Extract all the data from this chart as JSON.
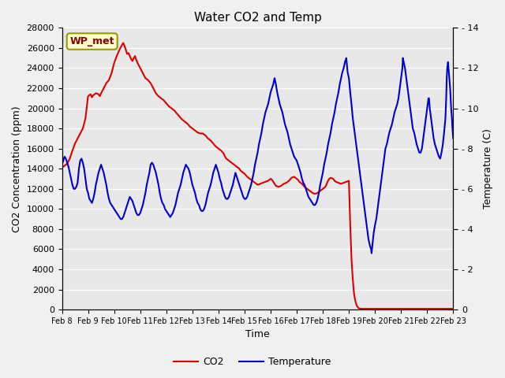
{
  "title": "Water CO2 and Temp",
  "xlabel": "Time",
  "ylabel_left": "CO2 Concentration (ppm)",
  "ylabel_right": "Temperature (C)",
  "co2_color": "#dd0000",
  "temp_color": "#0000cc",
  "bg_color": "#e8e8e8",
  "fig_bg_color": "#f0f0f0",
  "ylim_left": [
    0,
    28000
  ],
  "ylim_right": [
    0,
    14
  ],
  "yticks_left": [
    0,
    2000,
    4000,
    6000,
    8000,
    10000,
    12000,
    14000,
    16000,
    18000,
    20000,
    22000,
    24000,
    26000,
    28000
  ],
  "yticks_right": [
    0,
    2,
    4,
    6,
    8,
    10,
    12,
    14
  ],
  "label_box_text": "WP_met",
  "legend_co2": "CO2",
  "legend_temp": "Temperature",
  "xtick_labels": [
    "Feb 8",
    "Feb 9",
    "Feb 10",
    "Feb 11",
    "Feb 12",
    "Feb 13",
    "Feb 14",
    "Feb 15",
    "Feb 16",
    "Feb 17",
    "Feb 18",
    "Feb 19",
    "Feb 20",
    "Feb 21",
    "Feb 22",
    "Feb 23"
  ],
  "xtick_positions": [
    0,
    1,
    2,
    3,
    4,
    5,
    6,
    7,
    8,
    9,
    10,
    11,
    12,
    13,
    14,
    15
  ],
  "co2_data": [
    [
      0.0,
      14200
    ],
    [
      0.05,
      14200
    ],
    [
      0.1,
      14300
    ],
    [
      0.2,
      14500
    ],
    [
      0.3,
      15000
    ],
    [
      0.4,
      15800
    ],
    [
      0.5,
      16500
    ],
    [
      0.6,
      17000
    ],
    [
      0.7,
      17500
    ],
    [
      0.8,
      18000
    ],
    [
      0.9,
      19000
    ],
    [
      1.0,
      21200
    ],
    [
      1.1,
      21400
    ],
    [
      1.15,
      21100
    ],
    [
      1.2,
      21300
    ],
    [
      1.3,
      21500
    ],
    [
      1.4,
      21400
    ],
    [
      1.45,
      21200
    ],
    [
      1.5,
      21500
    ],
    [
      1.6,
      22000
    ],
    [
      1.7,
      22500
    ],
    [
      1.8,
      22800
    ],
    [
      1.9,
      23500
    ],
    [
      2.0,
      24500
    ],
    [
      2.1,
      25200
    ],
    [
      2.2,
      25800
    ],
    [
      2.3,
      26300
    ],
    [
      2.35,
      26500
    ],
    [
      2.4,
      26200
    ],
    [
      2.45,
      25800
    ],
    [
      2.5,
      25400
    ],
    [
      2.55,
      25500
    ],
    [
      2.6,
      25200
    ],
    [
      2.65,
      24900
    ],
    [
      2.7,
      24700
    ],
    [
      2.75,
      25000
    ],
    [
      2.8,
      25200
    ],
    [
      2.85,
      24800
    ],
    [
      2.9,
      24500
    ],
    [
      3.0,
      24000
    ],
    [
      3.1,
      23500
    ],
    [
      3.2,
      23000
    ],
    [
      3.3,
      22800
    ],
    [
      3.4,
      22500
    ],
    [
      3.5,
      22000
    ],
    [
      3.6,
      21500
    ],
    [
      3.7,
      21200
    ],
    [
      3.8,
      21000
    ],
    [
      3.9,
      20800
    ],
    [
      4.0,
      20500
    ],
    [
      4.1,
      20200
    ],
    [
      4.2,
      20000
    ],
    [
      4.3,
      19800
    ],
    [
      4.4,
      19500
    ],
    [
      4.5,
      19200
    ],
    [
      4.6,
      18900
    ],
    [
      4.7,
      18700
    ],
    [
      4.8,
      18500
    ],
    [
      4.9,
      18200
    ],
    [
      5.0,
      18000
    ],
    [
      5.1,
      17800
    ],
    [
      5.2,
      17600
    ],
    [
      5.3,
      17500
    ],
    [
      5.4,
      17500
    ],
    [
      5.5,
      17300
    ],
    [
      5.6,
      17000
    ],
    [
      5.7,
      16800
    ],
    [
      5.8,
      16500
    ],
    [
      5.9,
      16200
    ],
    [
      6.0,
      16000
    ],
    [
      6.1,
      15800
    ],
    [
      6.2,
      15500
    ],
    [
      6.25,
      15200
    ],
    [
      6.3,
      15000
    ],
    [
      6.4,
      14800
    ],
    [
      6.5,
      14600
    ],
    [
      6.6,
      14400
    ],
    [
      6.7,
      14200
    ],
    [
      6.8,
      14000
    ],
    [
      6.85,
      13800
    ],
    [
      6.9,
      13700
    ],
    [
      7.0,
      13500
    ],
    [
      7.1,
      13200
    ],
    [
      7.2,
      13000
    ],
    [
      7.3,
      12800
    ],
    [
      7.4,
      12600
    ],
    [
      7.5,
      12400
    ],
    [
      7.6,
      12500
    ],
    [
      7.7,
      12600
    ],
    [
      7.8,
      12700
    ],
    [
      7.9,
      12800
    ],
    [
      8.0,
      13000
    ],
    [
      8.05,
      12900
    ],
    [
      8.1,
      12700
    ],
    [
      8.15,
      12500
    ],
    [
      8.2,
      12300
    ],
    [
      8.3,
      12200
    ],
    [
      8.4,
      12300
    ],
    [
      8.5,
      12500
    ],
    [
      8.6,
      12600
    ],
    [
      8.7,
      12800
    ],
    [
      8.8,
      13100
    ],
    [
      8.9,
      13200
    ],
    [
      9.0,
      13000
    ],
    [
      9.05,
      12900
    ],
    [
      9.1,
      12700
    ],
    [
      9.2,
      12500
    ],
    [
      9.3,
      12200
    ],
    [
      9.4,
      12000
    ],
    [
      9.5,
      11800
    ],
    [
      9.6,
      11600
    ],
    [
      9.7,
      11500
    ],
    [
      9.8,
      11600
    ],
    [
      9.9,
      11800
    ],
    [
      10.0,
      12000
    ],
    [
      10.1,
      12200
    ],
    [
      10.15,
      12500
    ],
    [
      10.2,
      12800
    ],
    [
      10.25,
      13000
    ],
    [
      10.3,
      13100
    ],
    [
      10.4,
      13000
    ],
    [
      10.45,
      12800
    ],
    [
      10.5,
      12700
    ],
    [
      10.6,
      12600
    ],
    [
      10.7,
      12500
    ],
    [
      10.8,
      12600
    ],
    [
      10.9,
      12700
    ],
    [
      11.0,
      12800
    ],
    [
      11.05,
      8500
    ],
    [
      11.1,
      5000
    ],
    [
      11.15,
      3000
    ],
    [
      11.2,
      1500
    ],
    [
      11.25,
      800
    ],
    [
      11.3,
      400
    ],
    [
      11.35,
      200
    ],
    [
      11.4,
      100
    ],
    [
      11.5,
      80
    ],
    [
      11.6,
      80
    ],
    [
      11.7,
      80
    ],
    [
      11.8,
      80
    ],
    [
      12.0,
      80
    ],
    [
      12.5,
      80
    ],
    [
      13.0,
      80
    ],
    [
      13.5,
      80
    ],
    [
      14.0,
      80
    ],
    [
      14.5,
      80
    ],
    [
      15.0,
      80
    ]
  ],
  "temp_data": [
    [
      0.0,
      7.2
    ],
    [
      0.05,
      7.4
    ],
    [
      0.1,
      7.6
    ],
    [
      0.15,
      7.5
    ],
    [
      0.2,
      7.3
    ],
    [
      0.25,
      7.1
    ],
    [
      0.3,
      6.8
    ],
    [
      0.35,
      6.5
    ],
    [
      0.4,
      6.2
    ],
    [
      0.45,
      6.0
    ],
    [
      0.5,
      6.0
    ],
    [
      0.55,
      6.1
    ],
    [
      0.6,
      6.3
    ],
    [
      0.65,
      7.0
    ],
    [
      0.7,
      7.4
    ],
    [
      0.75,
      7.5
    ],
    [
      0.8,
      7.3
    ],
    [
      0.85,
      7.0
    ],
    [
      0.9,
      6.5
    ],
    [
      0.95,
      6.0
    ],
    [
      1.0,
      5.8
    ],
    [
      1.05,
      5.5
    ],
    [
      1.1,
      5.4
    ],
    [
      1.15,
      5.3
    ],
    [
      1.2,
      5.5
    ],
    [
      1.25,
      5.8
    ],
    [
      1.3,
      6.2
    ],
    [
      1.35,
      6.5
    ],
    [
      1.4,
      6.8
    ],
    [
      1.45,
      7.0
    ],
    [
      1.5,
      7.2
    ],
    [
      1.55,
      7.0
    ],
    [
      1.6,
      6.8
    ],
    [
      1.65,
      6.5
    ],
    [
      1.7,
      6.2
    ],
    [
      1.75,
      5.8
    ],
    [
      1.8,
      5.5
    ],
    [
      1.85,
      5.3
    ],
    [
      1.9,
      5.2
    ],
    [
      1.95,
      5.1
    ],
    [
      2.0,
      5.0
    ],
    [
      2.05,
      4.9
    ],
    [
      2.1,
      4.8
    ],
    [
      2.15,
      4.7
    ],
    [
      2.2,
      4.6
    ],
    [
      2.25,
      4.5
    ],
    [
      2.3,
      4.5
    ],
    [
      2.35,
      4.6
    ],
    [
      2.4,
      4.8
    ],
    [
      2.45,
      5.0
    ],
    [
      2.5,
      5.2
    ],
    [
      2.55,
      5.4
    ],
    [
      2.6,
      5.6
    ],
    [
      2.65,
      5.5
    ],
    [
      2.7,
      5.4
    ],
    [
      2.75,
      5.2
    ],
    [
      2.8,
      5.0
    ],
    [
      2.85,
      4.8
    ],
    [
      2.9,
      4.7
    ],
    [
      2.95,
      4.7
    ],
    [
      3.0,
      4.8
    ],
    [
      3.05,
      5.0
    ],
    [
      3.1,
      5.2
    ],
    [
      3.15,
      5.5
    ],
    [
      3.2,
      5.8
    ],
    [
      3.25,
      6.2
    ],
    [
      3.3,
      6.5
    ],
    [
      3.35,
      6.8
    ],
    [
      3.4,
      7.2
    ],
    [
      3.45,
      7.3
    ],
    [
      3.5,
      7.2
    ],
    [
      3.55,
      7.0
    ],
    [
      3.6,
      6.8
    ],
    [
      3.65,
      6.5
    ],
    [
      3.7,
      6.2
    ],
    [
      3.75,
      5.8
    ],
    [
      3.8,
      5.5
    ],
    [
      3.85,
      5.3
    ],
    [
      3.9,
      5.2
    ],
    [
      3.95,
      5.0
    ],
    [
      4.0,
      4.9
    ],
    [
      4.05,
      4.8
    ],
    [
      4.1,
      4.7
    ],
    [
      4.15,
      4.6
    ],
    [
      4.2,
      4.7
    ],
    [
      4.25,
      4.8
    ],
    [
      4.3,
      5.0
    ],
    [
      4.35,
      5.2
    ],
    [
      4.4,
      5.5
    ],
    [
      4.45,
      5.8
    ],
    [
      4.5,
      6.0
    ],
    [
      4.55,
      6.2
    ],
    [
      4.6,
      6.5
    ],
    [
      4.65,
      6.8
    ],
    [
      4.7,
      7.0
    ],
    [
      4.75,
      7.2
    ],
    [
      4.8,
      7.1
    ],
    [
      4.85,
      7.0
    ],
    [
      4.9,
      6.8
    ],
    [
      4.95,
      6.5
    ],
    [
      5.0,
      6.2
    ],
    [
      5.05,
      6.0
    ],
    [
      5.1,
      5.8
    ],
    [
      5.15,
      5.5
    ],
    [
      5.2,
      5.3
    ],
    [
      5.25,
      5.2
    ],
    [
      5.3,
      5.0
    ],
    [
      5.35,
      4.9
    ],
    [
      5.4,
      4.9
    ],
    [
      5.45,
      5.0
    ],
    [
      5.5,
      5.2
    ],
    [
      5.55,
      5.5
    ],
    [
      5.6,
      5.8
    ],
    [
      5.65,
      6.0
    ],
    [
      5.7,
      6.2
    ],
    [
      5.75,
      6.5
    ],
    [
      5.8,
      6.8
    ],
    [
      5.85,
      7.0
    ],
    [
      5.9,
      7.2
    ],
    [
      5.95,
      7.0
    ],
    [
      6.0,
      6.8
    ],
    [
      6.05,
      6.5
    ],
    [
      6.1,
      6.3
    ],
    [
      6.15,
      6.0
    ],
    [
      6.2,
      5.8
    ],
    [
      6.25,
      5.6
    ],
    [
      6.3,
      5.5
    ],
    [
      6.35,
      5.5
    ],
    [
      6.4,
      5.6
    ],
    [
      6.45,
      5.8
    ],
    [
      6.5,
      6.0
    ],
    [
      6.55,
      6.2
    ],
    [
      6.6,
      6.5
    ],
    [
      6.65,
      6.8
    ],
    [
      6.7,
      6.6
    ],
    [
      6.75,
      6.4
    ],
    [
      6.8,
      6.2
    ],
    [
      6.85,
      6.0
    ],
    [
      6.9,
      5.8
    ],
    [
      6.95,
      5.6
    ],
    [
      7.0,
      5.5
    ],
    [
      7.05,
      5.5
    ],
    [
      7.1,
      5.6
    ],
    [
      7.15,
      5.8
    ],
    [
      7.2,
      6.0
    ],
    [
      7.25,
      6.2
    ],
    [
      7.3,
      6.5
    ],
    [
      7.35,
      6.8
    ],
    [
      7.4,
      7.2
    ],
    [
      7.45,
      7.5
    ],
    [
      7.5,
      7.8
    ],
    [
      7.55,
      8.2
    ],
    [
      7.6,
      8.5
    ],
    [
      7.65,
      8.8
    ],
    [
      7.7,
      9.2
    ],
    [
      7.75,
      9.5
    ],
    [
      7.8,
      9.8
    ],
    [
      7.85,
      10.0
    ],
    [
      7.9,
      10.2
    ],
    [
      7.95,
      10.5
    ],
    [
      8.0,
      10.8
    ],
    [
      8.05,
      11.0
    ],
    [
      8.1,
      11.2
    ],
    [
      8.15,
      11.5
    ],
    [
      8.2,
      11.2
    ],
    [
      8.25,
      10.8
    ],
    [
      8.3,
      10.5
    ],
    [
      8.35,
      10.2
    ],
    [
      8.4,
      10.0
    ],
    [
      8.45,
      9.8
    ],
    [
      8.5,
      9.5
    ],
    [
      8.55,
      9.2
    ],
    [
      8.6,
      9.0
    ],
    [
      8.65,
      8.8
    ],
    [
      8.7,
      8.5
    ],
    [
      8.75,
      8.2
    ],
    [
      8.8,
      8.0
    ],
    [
      8.85,
      7.8
    ],
    [
      8.9,
      7.6
    ],
    [
      8.95,
      7.5
    ],
    [
      9.0,
      7.4
    ],
    [
      9.05,
      7.2
    ],
    [
      9.1,
      7.0
    ],
    [
      9.15,
      6.8
    ],
    [
      9.2,
      6.5
    ],
    [
      9.25,
      6.3
    ],
    [
      9.3,
      6.2
    ],
    [
      9.35,
      6.0
    ],
    [
      9.4,
      5.8
    ],
    [
      9.45,
      5.6
    ],
    [
      9.5,
      5.5
    ],
    [
      9.55,
      5.4
    ],
    [
      9.6,
      5.3
    ],
    [
      9.65,
      5.2
    ],
    [
      9.7,
      5.2
    ],
    [
      9.75,
      5.3
    ],
    [
      9.8,
      5.5
    ],
    [
      9.85,
      5.8
    ],
    [
      9.9,
      6.2
    ],
    [
      9.95,
      6.5
    ],
    [
      10.0,
      6.8
    ],
    [
      10.05,
      7.2
    ],
    [
      10.1,
      7.5
    ],
    [
      10.15,
      7.8
    ],
    [
      10.2,
      8.2
    ],
    [
      10.25,
      8.5
    ],
    [
      10.3,
      8.8
    ],
    [
      10.35,
      9.2
    ],
    [
      10.4,
      9.5
    ],
    [
      10.45,
      9.8
    ],
    [
      10.5,
      10.2
    ],
    [
      10.55,
      10.5
    ],
    [
      10.6,
      10.8
    ],
    [
      10.65,
      11.2
    ],
    [
      10.7,
      11.5
    ],
    [
      10.75,
      11.8
    ],
    [
      10.8,
      12.0
    ],
    [
      10.85,
      12.3
    ],
    [
      10.9,
      12.5
    ],
    [
      10.92,
      12.2
    ],
    [
      10.95,
      11.8
    ],
    [
      11.0,
      11.5
    ],
    [
      11.05,
      10.8
    ],
    [
      11.1,
      10.2
    ],
    [
      11.15,
      9.5
    ],
    [
      11.2,
      9.0
    ],
    [
      11.25,
      8.5
    ],
    [
      11.3,
      8.0
    ],
    [
      11.35,
      7.5
    ],
    [
      11.4,
      7.0
    ],
    [
      11.45,
      6.5
    ],
    [
      11.5,
      6.0
    ],
    [
      11.55,
      5.5
    ],
    [
      11.6,
      5.0
    ],
    [
      11.65,
      4.5
    ],
    [
      11.7,
      4.0
    ],
    [
      11.75,
      3.5
    ],
    [
      11.8,
      3.2
    ],
    [
      11.85,
      3.0
    ],
    [
      11.87,
      2.8
    ],
    [
      11.9,
      3.2
    ],
    [
      11.95,
      3.8
    ],
    [
      12.0,
      4.2
    ],
    [
      12.05,
      4.5
    ],
    [
      12.1,
      5.0
    ],
    [
      12.15,
      5.5
    ],
    [
      12.2,
      6.0
    ],
    [
      12.25,
      6.5
    ],
    [
      12.3,
      7.0
    ],
    [
      12.35,
      7.5
    ],
    [
      12.4,
      8.0
    ],
    [
      12.45,
      8.2
    ],
    [
      12.5,
      8.5
    ],
    [
      12.55,
      8.8
    ],
    [
      12.6,
      9.0
    ],
    [
      12.65,
      9.2
    ],
    [
      12.7,
      9.5
    ],
    [
      12.75,
      9.8
    ],
    [
      12.8,
      10.0
    ],
    [
      12.85,
      10.2
    ],
    [
      12.9,
      10.5
    ],
    [
      12.95,
      11.0
    ],
    [
      13.0,
      11.5
    ],
    [
      13.05,
      12.0
    ],
    [
      13.07,
      12.5
    ],
    [
      13.1,
      12.3
    ],
    [
      13.15,
      12.0
    ],
    [
      13.2,
      11.5
    ],
    [
      13.25,
      11.0
    ],
    [
      13.3,
      10.5
    ],
    [
      13.35,
      10.0
    ],
    [
      13.4,
      9.5
    ],
    [
      13.45,
      9.0
    ],
    [
      13.5,
      8.8
    ],
    [
      13.55,
      8.5
    ],
    [
      13.6,
      8.2
    ],
    [
      13.65,
      8.0
    ],
    [
      13.7,
      7.8
    ],
    [
      13.75,
      7.8
    ],
    [
      13.8,
      8.0
    ],
    [
      13.85,
      8.5
    ],
    [
      13.9,
      9.0
    ],
    [
      13.95,
      9.5
    ],
    [
      14.0,
      10.0
    ],
    [
      14.05,
      10.5
    ],
    [
      14.07,
      10.5
    ],
    [
      14.1,
      10.0
    ],
    [
      14.15,
      9.5
    ],
    [
      14.2,
      9.0
    ],
    [
      14.25,
      8.5
    ],
    [
      14.3,
      8.2
    ],
    [
      14.35,
      8.0
    ],
    [
      14.4,
      7.8
    ],
    [
      14.45,
      7.6
    ],
    [
      14.5,
      7.5
    ],
    [
      14.55,
      7.8
    ],
    [
      14.6,
      8.2
    ],
    [
      14.65,
      8.8
    ],
    [
      14.7,
      9.5
    ],
    [
      14.73,
      10.5
    ],
    [
      14.75,
      11.5
    ],
    [
      14.77,
      12.0
    ],
    [
      14.8,
      12.3
    ],
    [
      14.82,
      12.0
    ],
    [
      14.85,
      11.5
    ],
    [
      14.88,
      11.0
    ],
    [
      14.9,
      10.5
    ],
    [
      14.92,
      10.0
    ],
    [
      14.95,
      9.5
    ],
    [
      14.97,
      9.0
    ],
    [
      15.0,
      8.5
    ]
  ]
}
